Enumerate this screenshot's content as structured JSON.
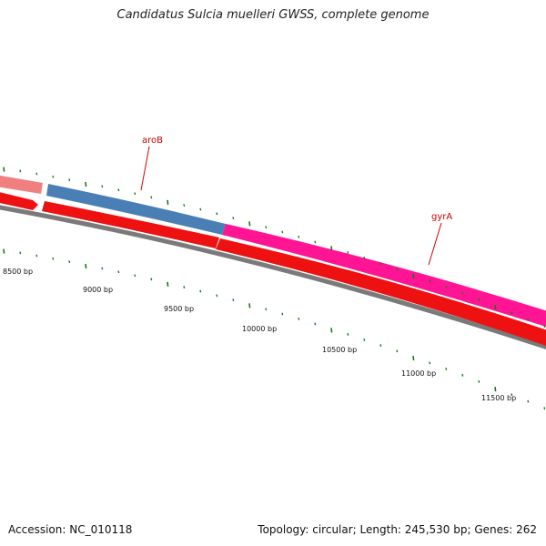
{
  "title": "Candidatus Sulcia muelleri GWSS, complete genome",
  "footer": {
    "accession": "Accession: NC_010118",
    "summary": "Topology: circular; Length: 245,530 bp; Genes: 262"
  },
  "ruler": {
    "labels": [
      "8500 bp",
      "9000 bp",
      "9500 bp",
      "10000 bp",
      "10500 bp",
      "11000 bp",
      "11500 bp"
    ]
  },
  "genes": [
    {
      "name": "aroB",
      "color": "#4a7fb5"
    },
    {
      "name": "gyrA",
      "color": "#ff1493"
    }
  ],
  "colors": {
    "forward_gene_left": "#f08080",
    "reverse_strand": "#ff0000",
    "backbone": "#777777",
    "tick": "#1a7a1a",
    "label": "#cc0000"
  }
}
